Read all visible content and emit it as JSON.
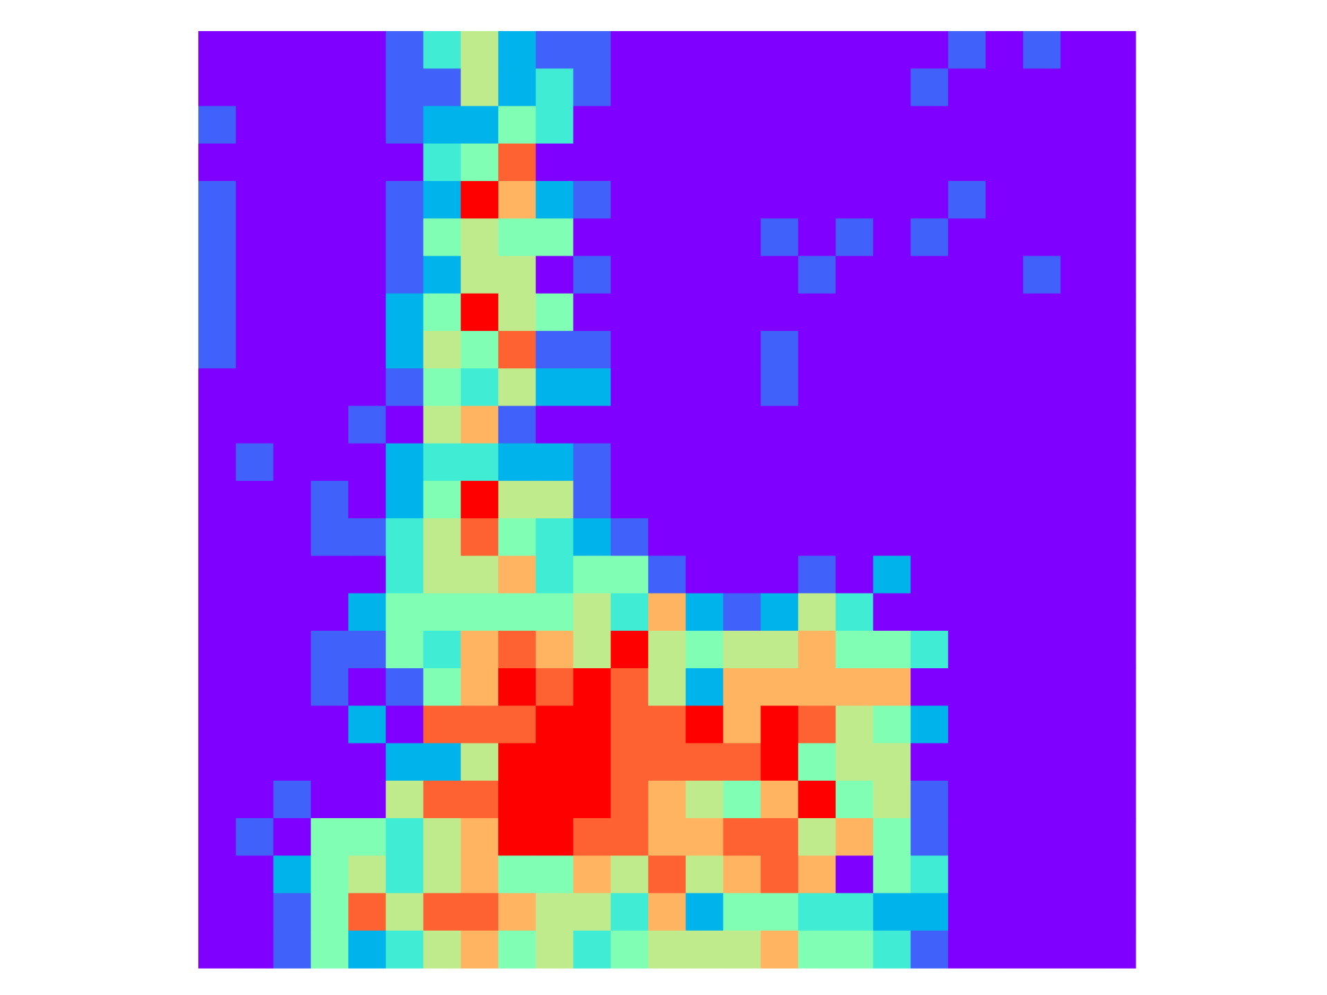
{
  "chart_data": {
    "type": "heatmap",
    "title": "",
    "xlabel": "",
    "ylabel": "",
    "axes_visible": false,
    "colorbar_visible": false,
    "grid": false,
    "rows": 25,
    "cols": 25,
    "colormap": "rainbow",
    "palette": [
      "#8000ff",
      "#4062fa",
      "#00b4eb",
      "#40ecd4",
      "#80ffb4",
      "#c0eb8d",
      "#ffb462",
      "#ff6232",
      "#ff0000"
    ],
    "value_range": [
      0,
      8
    ],
    "values": [
      [
        0,
        0,
        0,
        0,
        0,
        1,
        3,
        5,
        2,
        1,
        1,
        0,
        0,
        0,
        0,
        0,
        0,
        0,
        0,
        0,
        1,
        0,
        1,
        0,
        0
      ],
      [
        0,
        0,
        0,
        0,
        0,
        1,
        1,
        5,
        2,
        3,
        1,
        0,
        0,
        0,
        0,
        0,
        0,
        0,
        0,
        1,
        0,
        0,
        0,
        0,
        0
      ],
      [
        1,
        0,
        0,
        0,
        0,
        1,
        2,
        2,
        4,
        3,
        0,
        0,
        0,
        0,
        0,
        0,
        0,
        0,
        0,
        0,
        0,
        0,
        0,
        0,
        0
      ],
      [
        0,
        0,
        0,
        0,
        0,
        0,
        3,
        4,
        7,
        0,
        0,
        0,
        0,
        0,
        0,
        0,
        0,
        0,
        0,
        0,
        0,
        0,
        0,
        0,
        0
      ],
      [
        1,
        0,
        0,
        0,
        0,
        1,
        2,
        8,
        6,
        2,
        1,
        0,
        0,
        0,
        0,
        0,
        0,
        0,
        0,
        0,
        1,
        0,
        0,
        0,
        0
      ],
      [
        1,
        0,
        0,
        0,
        0,
        1,
        4,
        5,
        4,
        4,
        0,
        0,
        0,
        0,
        0,
        1,
        0,
        1,
        0,
        1,
        0,
        0,
        0,
        0,
        0
      ],
      [
        1,
        0,
        0,
        0,
        0,
        1,
        2,
        5,
        5,
        0,
        1,
        0,
        0,
        0,
        0,
        0,
        1,
        0,
        0,
        0,
        0,
        0,
        1,
        0,
        0
      ],
      [
        1,
        0,
        0,
        0,
        0,
        2,
        4,
        8,
        5,
        4,
        0,
        0,
        0,
        0,
        0,
        0,
        0,
        0,
        0,
        0,
        0,
        0,
        0,
        0,
        0
      ],
      [
        1,
        0,
        0,
        0,
        0,
        2,
        5,
        4,
        7,
        1,
        1,
        0,
        0,
        0,
        0,
        1,
        0,
        0,
        0,
        0,
        0,
        0,
        0,
        0,
        0
      ],
      [
        0,
        0,
        0,
        0,
        0,
        1,
        4,
        3,
        5,
        2,
        2,
        0,
        0,
        0,
        0,
        1,
        0,
        0,
        0,
        0,
        0,
        0,
        0,
        0,
        0
      ],
      [
        0,
        0,
        0,
        0,
        1,
        0,
        5,
        6,
        1,
        0,
        0,
        0,
        0,
        0,
        0,
        0,
        0,
        0,
        0,
        0,
        0,
        0,
        0,
        0,
        0
      ],
      [
        0,
        1,
        0,
        0,
        0,
        2,
        3,
        3,
        2,
        2,
        1,
        0,
        0,
        0,
        0,
        0,
        0,
        0,
        0,
        0,
        0,
        0,
        0,
        0,
        0
      ],
      [
        0,
        0,
        0,
        1,
        0,
        2,
        4,
        8,
        5,
        5,
        1,
        0,
        0,
        0,
        0,
        0,
        0,
        0,
        0,
        0,
        0,
        0,
        0,
        0,
        0
      ],
      [
        0,
        0,
        0,
        1,
        1,
        3,
        5,
        7,
        4,
        3,
        2,
        1,
        0,
        0,
        0,
        0,
        0,
        0,
        0,
        0,
        0,
        0,
        0,
        0,
        0
      ],
      [
        0,
        0,
        0,
        0,
        0,
        3,
        5,
        5,
        6,
        3,
        4,
        4,
        1,
        0,
        0,
        0,
        1,
        0,
        2,
        0,
        0,
        0,
        0,
        0,
        0
      ],
      [
        0,
        0,
        0,
        0,
        2,
        4,
        4,
        4,
        4,
        4,
        5,
        3,
        6,
        2,
        1,
        2,
        5,
        3,
        0,
        0,
        0,
        0,
        0,
        0,
        0
      ],
      [
        0,
        0,
        0,
        1,
        1,
        4,
        3,
        6,
        7,
        6,
        5,
        8,
        5,
        4,
        5,
        5,
        6,
        4,
        4,
        3,
        0,
        0,
        0,
        0,
        0
      ],
      [
        0,
        0,
        0,
        1,
        0,
        1,
        4,
        6,
        8,
        7,
        8,
        7,
        5,
        2,
        6,
        6,
        6,
        6,
        6,
        0,
        0,
        0,
        0,
        0,
        0
      ],
      [
        0,
        0,
        0,
        0,
        2,
        0,
        7,
        7,
        7,
        8,
        8,
        7,
        7,
        8,
        6,
        8,
        7,
        5,
        4,
        2,
        0,
        0,
        0,
        0,
        0
      ],
      [
        0,
        0,
        0,
        0,
        0,
        2,
        2,
        5,
        8,
        8,
        8,
        7,
        7,
        7,
        7,
        8,
        4,
        5,
        5,
        0,
        0,
        0,
        0,
        0,
        0
      ],
      [
        0,
        0,
        1,
        0,
        0,
        5,
        7,
        7,
        8,
        8,
        8,
        7,
        6,
        5,
        4,
        6,
        8,
        4,
        5,
        1,
        0,
        0,
        0,
        0,
        0
      ],
      [
        0,
        1,
        0,
        4,
        4,
        3,
        5,
        6,
        8,
        8,
        7,
        7,
        6,
        6,
        7,
        7,
        5,
        6,
        4,
        1,
        0,
        0,
        0,
        0,
        0
      ],
      [
        0,
        0,
        2,
        4,
        5,
        3,
        5,
        6,
        4,
        4,
        6,
        5,
        7,
        5,
        6,
        7,
        6,
        0,
        4,
        3,
        0,
        0,
        0,
        0,
        0
      ],
      [
        0,
        0,
        1,
        4,
        7,
        5,
        7,
        7,
        6,
        5,
        5,
        3,
        6,
        2,
        4,
        4,
        3,
        3,
        2,
        2,
        0,
        0,
        0,
        0,
        0
      ],
      [
        0,
        0,
        1,
        4,
        2,
        3,
        5,
        6,
        4,
        5,
        3,
        4,
        5,
        5,
        5,
        6,
        4,
        4,
        3,
        1,
        0,
        0,
        0,
        0,
        0
      ]
    ]
  }
}
